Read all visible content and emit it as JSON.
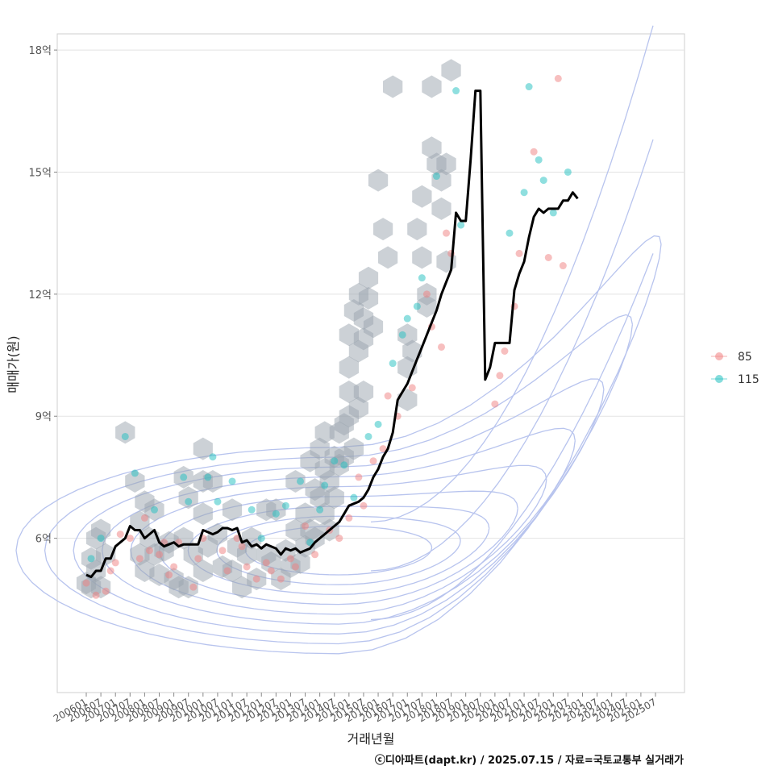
{
  "chart_data": {
    "type": "scatter",
    "xlabel": "거래년월",
    "ylabel": "매매가(원)",
    "caption": "ⓒ디아파트(dapt.kr) / 2025.07.15 / 자료=국토교통부 실거래가",
    "x_ticks": [
      "200601",
      "200607",
      "200701",
      "200707",
      "200801",
      "200807",
      "200901",
      "200907",
      "201001",
      "201007",
      "201101",
      "201107",
      "201201",
      "201207",
      "201301",
      "201307",
      "201401",
      "201407",
      "201501",
      "201507",
      "201601",
      "201607",
      "201701",
      "201707",
      "201801",
      "201807",
      "201901",
      "201907",
      "202001",
      "202007",
      "202101",
      "202107",
      "202201",
      "202207",
      "202301",
      "202307",
      "202401",
      "202407",
      "202501",
      "202507"
    ],
    "y_ticks": [
      {
        "value": 6,
        "label": "6억"
      },
      {
        "value": 9,
        "label": "9억"
      },
      {
        "value": 12,
        "label": "12억"
      },
      {
        "value": 15,
        "label": "15억"
      },
      {
        "value": 18,
        "label": "18억"
      }
    ],
    "ylim": [
      3.0,
      18.2
    ],
    "grid": "horizontal",
    "legend_position": "right",
    "legend": [
      {
        "name": "85",
        "color": "#f08080"
      },
      {
        "name": "115",
        "color": "#20c0c0"
      }
    ],
    "trend_line": {
      "color": "#000000",
      "points": [
        [
          "200601",
          5.1
        ],
        [
          "200603",
          5.05
        ],
        [
          "200605",
          5.2
        ],
        [
          "200607",
          5.2
        ],
        [
          "200609",
          5.5
        ],
        [
          "200611",
          5.5
        ],
        [
          "200701",
          5.8
        ],
        [
          "200703",
          5.9
        ],
        [
          "200705",
          6.0
        ],
        [
          "200707",
          6.3
        ],
        [
          "200709",
          6.2
        ],
        [
          "200711",
          6.2
        ],
        [
          "200801",
          6.0
        ],
        [
          "200803",
          6.1
        ],
        [
          "200805",
          6.2
        ],
        [
          "200807",
          5.9
        ],
        [
          "200809",
          5.8
        ],
        [
          "200811",
          5.85
        ],
        [
          "200901",
          5.9
        ],
        [
          "200903",
          5.8
        ],
        [
          "200905",
          5.85
        ],
        [
          "200907",
          5.85
        ],
        [
          "200909",
          5.85
        ],
        [
          "200911",
          5.85
        ],
        [
          "201001",
          6.2
        ],
        [
          "201003",
          6.15
        ],
        [
          "201005",
          6.1
        ],
        [
          "201007",
          6.15
        ],
        [
          "201009",
          6.25
        ],
        [
          "201011",
          6.25
        ],
        [
          "201101",
          6.2
        ],
        [
          "201103",
          6.25
        ],
        [
          "201105",
          5.9
        ],
        [
          "201107",
          5.95
        ],
        [
          "201109",
          5.8
        ],
        [
          "201111",
          5.85
        ],
        [
          "201201",
          5.75
        ],
        [
          "201203",
          5.85
        ],
        [
          "201205",
          5.8
        ],
        [
          "201207",
          5.75
        ],
        [
          "201209",
          5.6
        ],
        [
          "201211",
          5.75
        ],
        [
          "201301",
          5.7
        ],
        [
          "201303",
          5.75
        ],
        [
          "201305",
          5.65
        ],
        [
          "201307",
          5.7
        ],
        [
          "201309",
          5.75
        ],
        [
          "201311",
          5.9
        ],
        [
          "201401",
          6.0
        ],
        [
          "201403",
          6.1
        ],
        [
          "201405",
          6.2
        ],
        [
          "201407",
          6.3
        ],
        [
          "201409",
          6.4
        ],
        [
          "201411",
          6.6
        ],
        [
          "201501",
          6.8
        ],
        [
          "201503",
          6.85
        ],
        [
          "201505",
          6.9
        ],
        [
          "201507",
          7.0
        ],
        [
          "201509",
          7.2
        ],
        [
          "201511",
          7.5
        ],
        [
          "201601",
          7.7
        ],
        [
          "201603",
          8.0
        ],
        [
          "201605",
          8.2
        ],
        [
          "201607",
          8.6
        ],
        [
          "201609",
          9.4
        ],
        [
          "201611",
          9.6
        ],
        [
          "201701",
          9.8
        ],
        [
          "201703",
          10.1
        ],
        [
          "201705",
          10.4
        ],
        [
          "201707",
          10.7
        ],
        [
          "201709",
          11.0
        ],
        [
          "201711",
          11.3
        ],
        [
          "201801",
          11.6
        ],
        [
          "201803",
          12.0
        ],
        [
          "201805",
          12.3
        ],
        [
          "201807",
          12.6
        ],
        [
          "201809",
          14.0
        ],
        [
          "201811",
          13.8
        ],
        [
          "201901",
          13.8
        ],
        [
          "201903",
          15.3
        ],
        [
          "201905",
          17.0
        ],
        [
          "201907",
          17.0
        ],
        [
          "201909",
          9.9
        ],
        [
          "201911",
          10.2
        ],
        [
          "202001",
          10.8
        ],
        [
          "202003",
          10.8
        ],
        [
          "202005",
          10.8
        ],
        [
          "202007",
          10.8
        ],
        [
          "202009",
          12.1
        ],
        [
          "202011",
          12.5
        ],
        [
          "202101",
          12.8
        ],
        [
          "202103",
          13.4
        ],
        [
          "202105",
          13.9
        ],
        [
          "202107",
          14.1
        ],
        [
          "202109",
          14.0
        ],
        [
          "202111",
          14.1
        ],
        [
          "202201",
          14.1
        ],
        [
          "202203",
          14.1
        ],
        [
          "202205",
          14.3
        ],
        [
          "202207",
          14.3
        ],
        [
          "202209",
          14.5
        ],
        [
          "202211",
          14.35
        ]
      ]
    },
    "scatter_points": [
      [
        "200601",
        4.9,
        "85"
      ],
      [
        "200603",
        5.5,
        "115"
      ],
      [
        "200605",
        4.6,
        "85"
      ],
      [
        "200607",
        6.0,
        "115"
      ],
      [
        "200609",
        4.7,
        "85"
      ],
      [
        "200611",
        5.2,
        "85"
      ],
      [
        "200701",
        5.4,
        "85"
      ],
      [
        "200703",
        6.1,
        "85"
      ],
      [
        "200705",
        8.5,
        "115"
      ],
      [
        "200707",
        6.0,
        "85"
      ],
      [
        "200709",
        7.6,
        "115"
      ],
      [
        "200711",
        5.5,
        "85"
      ],
      [
        "200801",
        6.5,
        "85"
      ],
      [
        "200803",
        5.7,
        "85"
      ],
      [
        "200805",
        6.7,
        "115"
      ],
      [
        "200807",
        5.6,
        "85"
      ],
      [
        "200809",
        5.9,
        "85"
      ],
      [
        "200811",
        5.1,
        "85"
      ],
      [
        "200901",
        5.3,
        "85"
      ],
      [
        "200903",
        5.9,
        "85"
      ],
      [
        "200905",
        7.5,
        "115"
      ],
      [
        "200907",
        6.9,
        "115"
      ],
      [
        "200909",
        4.8,
        "85"
      ],
      [
        "200911",
        5.5,
        "85"
      ],
      [
        "201001",
        6.0,
        "85"
      ],
      [
        "201003",
        7.5,
        "115"
      ],
      [
        "201005",
        8.0,
        "115"
      ],
      [
        "201007",
        6.9,
        "115"
      ],
      [
        "201009",
        5.7,
        "85"
      ],
      [
        "201011",
        5.2,
        "85"
      ],
      [
        "201101",
        7.4,
        "115"
      ],
      [
        "201103",
        6.0,
        "85"
      ],
      [
        "201105",
        5.8,
        "85"
      ],
      [
        "201107",
        5.3,
        "85"
      ],
      [
        "201109",
        6.7,
        "115"
      ],
      [
        "201111",
        5.0,
        "85"
      ],
      [
        "201201",
        6.0,
        "115"
      ],
      [
        "201203",
        5.4,
        "85"
      ],
      [
        "201205",
        5.2,
        "85"
      ],
      [
        "201207",
        6.6,
        "115"
      ],
      [
        "201209",
        5.0,
        "85"
      ],
      [
        "201211",
        6.8,
        "115"
      ],
      [
        "201301",
        5.5,
        "85"
      ],
      [
        "201303",
        5.3,
        "85"
      ],
      [
        "201305",
        7.4,
        "115"
      ],
      [
        "201307",
        6.3,
        "85"
      ],
      [
        "201309",
        5.9,
        "115"
      ],
      [
        "201311",
        5.6,
        "85"
      ],
      [
        "201401",
        6.7,
        "115"
      ],
      [
        "201403",
        7.3,
        "115"
      ],
      [
        "201405",
        6.2,
        "85"
      ],
      [
        "201407",
        7.9,
        "115"
      ],
      [
        "201409",
        6.0,
        "85"
      ],
      [
        "201411",
        7.8,
        "115"
      ],
      [
        "201501",
        6.5,
        "85"
      ],
      [
        "201503",
        7.0,
        "115"
      ],
      [
        "201505",
        7.5,
        "85"
      ],
      [
        "201507",
        6.8,
        "85"
      ],
      [
        "201509",
        8.5,
        "115"
      ],
      [
        "201511",
        7.9,
        "85"
      ],
      [
        "201601",
        8.8,
        "115"
      ],
      [
        "201603",
        8.2,
        "85"
      ],
      [
        "201605",
        9.5,
        "85"
      ],
      [
        "201607",
        10.3,
        "115"
      ],
      [
        "201609",
        9.0,
        "85"
      ],
      [
        "201611",
        11.0,
        "115"
      ],
      [
        "201701",
        11.4,
        "115"
      ],
      [
        "201703",
        9.7,
        "85"
      ],
      [
        "201705",
        11.7,
        "115"
      ],
      [
        "201707",
        12.4,
        "115"
      ],
      [
        "201709",
        12.0,
        "85"
      ],
      [
        "201711",
        11.2,
        "85"
      ],
      [
        "201801",
        14.9,
        "115"
      ],
      [
        "201803",
        10.7,
        "85"
      ],
      [
        "201805",
        13.5,
        "85"
      ],
      [
        "201807",
        13.0,
        "85"
      ],
      [
        "201809",
        17.0,
        "115"
      ],
      [
        "201811",
        13.7,
        "115"
      ],
      [
        "202001",
        9.3,
        "85"
      ],
      [
        "202003",
        10.0,
        "85"
      ],
      [
        "202005",
        10.6,
        "85"
      ],
      [
        "202007",
        13.5,
        "115"
      ],
      [
        "202009",
        11.7,
        "85"
      ],
      [
        "202011",
        13.0,
        "85"
      ],
      [
        "202101",
        14.5,
        "115"
      ],
      [
        "202103",
        17.1,
        "115"
      ],
      [
        "202105",
        15.5,
        "85"
      ],
      [
        "202107",
        15.3,
        "115"
      ],
      [
        "202109",
        14.8,
        "115"
      ],
      [
        "202111",
        12.9,
        "85"
      ],
      [
        "202201",
        14.0,
        "115"
      ],
      [
        "202203",
        17.3,
        "85"
      ],
      [
        "202205",
        12.7,
        "85"
      ],
      [
        "202207",
        15.0,
        "115"
      ]
    ],
    "hexbins": [
      [
        "200601",
        4.9
      ],
      [
        "200603",
        5.5
      ],
      [
        "200603",
        4.8
      ],
      [
        "200605",
        6.0
      ],
      [
        "200605",
        5.2
      ],
      [
        "200607",
        4.8
      ],
      [
        "200607",
        6.2
      ],
      [
        "200609",
        5.6
      ],
      [
        "200705",
        8.6
      ],
      [
        "200709",
        7.4
      ],
      [
        "200711",
        6.4
      ],
      [
        "200711",
        5.6
      ],
      [
        "200801",
        6.9
      ],
      [
        "200801",
        5.2
      ],
      [
        "200803",
        6.0
      ],
      [
        "200805",
        5.6
      ],
      [
        "200805",
        6.7
      ],
      [
        "200807",
        5.1
      ],
      [
        "200809",
        5.7
      ],
      [
        "200811",
        5.9
      ],
      [
        "200901",
        5.0
      ],
      [
        "200903",
        4.8
      ],
      [
        "200905",
        7.5
      ],
      [
        "200905",
        6.0
      ],
      [
        "200907",
        7.0
      ],
      [
        "200907",
        4.8
      ],
      [
        "200909",
        5.6
      ],
      [
        "201001",
        8.2
      ],
      [
        "201001",
        7.4
      ],
      [
        "201001",
        6.6
      ],
      [
        "201001",
        5.2
      ],
      [
        "201003",
        5.8
      ],
      [
        "201005",
        7.4
      ],
      [
        "201007",
        6.1
      ],
      [
        "201009",
        5.3
      ],
      [
        "201101",
        6.7
      ],
      [
        "201101",
        5.2
      ],
      [
        "201103",
        5.8
      ],
      [
        "201105",
        4.8
      ],
      [
        "201107",
        5.6
      ],
      [
        "201109",
        6.0
      ],
      [
        "201111",
        5.0
      ],
      [
        "201203",
        5.6
      ],
      [
        "201203",
        6.7
      ],
      [
        "201205",
        5.4
      ],
      [
        "201207",
        6.7
      ],
      [
        "201209",
        5.0
      ],
      [
        "201211",
        5.7
      ],
      [
        "201301",
        5.3
      ],
      [
        "201303",
        6.2
      ],
      [
        "201303",
        7.4
      ],
      [
        "201305",
        5.4
      ],
      [
        "201307",
        6.6
      ],
      [
        "201307",
        5.8
      ],
      [
        "201309",
        7.9
      ],
      [
        "201309",
        6.2
      ],
      [
        "201311",
        7.2
      ],
      [
        "201311",
        6.0
      ],
      [
        "201401",
        8.2
      ],
      [
        "201401",
        7.0
      ],
      [
        "201403",
        8.6
      ],
      [
        "201403",
        7.7
      ],
      [
        "201403",
        6.6
      ],
      [
        "201405",
        7.4
      ],
      [
        "201405",
        6.2
      ],
      [
        "201407",
        8.0
      ],
      [
        "201407",
        7.0
      ],
      [
        "201409",
        8.6
      ],
      [
        "201409",
        7.8
      ],
      [
        "201411",
        8.0
      ],
      [
        "201411",
        8.8
      ],
      [
        "201501",
        10.2
      ],
      [
        "201501",
        9.6
      ],
      [
        "201501",
        9.0
      ],
      [
        "201501",
        11.0
      ],
      [
        "201503",
        11.6
      ],
      [
        "201503",
        8.2
      ],
      [
        "201505",
        12.0
      ],
      [
        "201505",
        9.2
      ],
      [
        "201505",
        10.6
      ],
      [
        "201507",
        11.4
      ],
      [
        "201507",
        9.6
      ],
      [
        "201507",
        10.9
      ],
      [
        "201509",
        11.9
      ],
      [
        "201509",
        12.4
      ],
      [
        "201511",
        11.2
      ],
      [
        "201601",
        14.8
      ],
      [
        "201603",
        13.6
      ],
      [
        "201605",
        12.9
      ],
      [
        "201607",
        17.1
      ],
      [
        "201701",
        11.0
      ],
      [
        "201701",
        10.2
      ],
      [
        "201701",
        9.4
      ],
      [
        "201703",
        10.6
      ],
      [
        "201705",
        13.6
      ],
      [
        "201707",
        14.4
      ],
      [
        "201707",
        12.9
      ],
      [
        "201709",
        12.0
      ],
      [
        "201709",
        11.7
      ],
      [
        "201711",
        17.1
      ],
      [
        "201711",
        15.6
      ],
      [
        "201801",
        15.2
      ],
      [
        "201803",
        14.8
      ],
      [
        "201803",
        14.1
      ],
      [
        "201805",
        15.2
      ],
      [
        "201805",
        12.8
      ],
      [
        "201807",
        17.5
      ]
    ],
    "density_contours": 9
  }
}
